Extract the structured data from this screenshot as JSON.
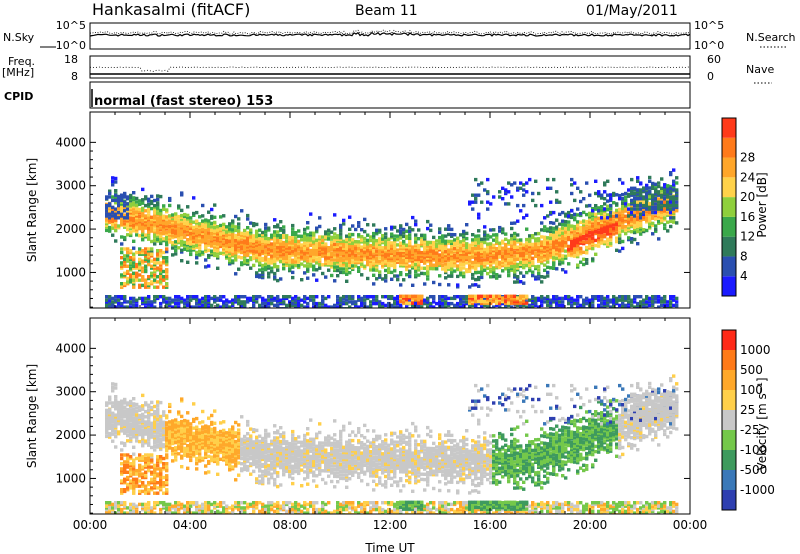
{
  "header": {
    "station": "Hankasalmi (fitACF)",
    "beam": "Beam 11",
    "date": "01/May/2011"
  },
  "noise_panel": {
    "left_label": "N.Sky",
    "left_ticks": [
      "10^5",
      "10^0"
    ],
    "right_label": "N.Search",
    "right_ticks": [
      "10^5",
      "10^0"
    ]
  },
  "freq_panel": {
    "left_label_1": "Freq.",
    "left_label_2": "[MHz]",
    "left_ticks": [
      "18",
      "8"
    ],
    "right_label": "Nave",
    "right_ticks": [
      "60",
      "0"
    ]
  },
  "cpid_panel": {
    "label": "CPID",
    "mode_text": "normal (fast stereo) 153"
  },
  "chart_data": [
    {
      "type": "heatmap",
      "name": "power",
      "ylabel": "Slant Range [km]",
      "xlabel": "",
      "y_ticks": [
        1000,
        2000,
        3000,
        4000
      ],
      "ylim": [
        180,
        4700
      ],
      "xlim": [
        0,
        24
      ],
      "colorbar": {
        "label": "Power [dB]",
        "ticks": [
          "4",
          "8",
          "12",
          "16",
          "20",
          "24",
          "28"
        ],
        "colors": [
          "#1b1bff",
          "#2a4fb0",
          "#2f7a5a",
          "#3aa84a",
          "#8fcf3c",
          "#ffd24a",
          "#ffa62a",
          "#ff7a1a",
          "#ff3a1a"
        ]
      }
    },
    {
      "type": "heatmap",
      "name": "velocity",
      "ylabel": "Slant Range [km]",
      "xlabel": "Time UT",
      "y_ticks": [
        1000,
        2000,
        3000,
        4000
      ],
      "ylim": [
        180,
        4700
      ],
      "xlim": [
        0,
        24
      ],
      "x_ticks": [
        "00:00",
        "04:00",
        "08:00",
        "12:00",
        "16:00",
        "20:00",
        "00:00"
      ],
      "colorbar": {
        "label": "Velocity [m s⁻¹]",
        "ticks": [
          "1000",
          "500",
          "100",
          "25",
          "-25",
          "-100",
          "-500",
          "-1000"
        ],
        "colors": [
          "#2e3fb0",
          "#3a78b8",
          "#3e9a5e",
          "#74c84a",
          "#c8c8c8",
          "#ffcf4a",
          "#ffa82a",
          "#ff7a18",
          "#ff2a18"
        ]
      }
    }
  ]
}
